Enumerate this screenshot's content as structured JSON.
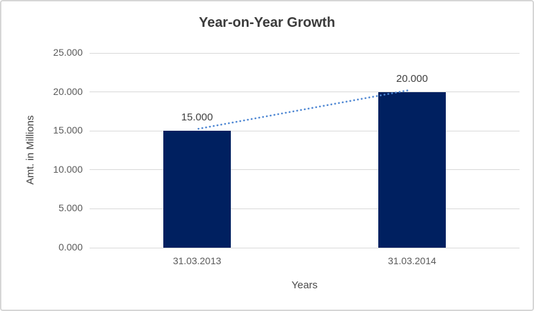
{
  "chart_data": {
    "type": "bar",
    "title": "Year-on-Year Growth",
    "xlabel": "Years",
    "ylabel": "Amt. in Millions",
    "categories": [
      "31.03.2013",
      "31.03.2014"
    ],
    "values": [
      15,
      20
    ],
    "data_labels": [
      "15.000",
      "20.000"
    ],
    "ytick_labels": [
      "0.000",
      "5.000",
      "10.000",
      "15.000",
      "20.000",
      "25.000"
    ],
    "ylim": [
      0,
      25
    ],
    "grid": "horizontal",
    "legend": "none",
    "bar_color": "#002060",
    "gridline_color": "#d9d9d9",
    "trendline": {
      "style": "dotted",
      "color": "#4e87d3"
    }
  }
}
